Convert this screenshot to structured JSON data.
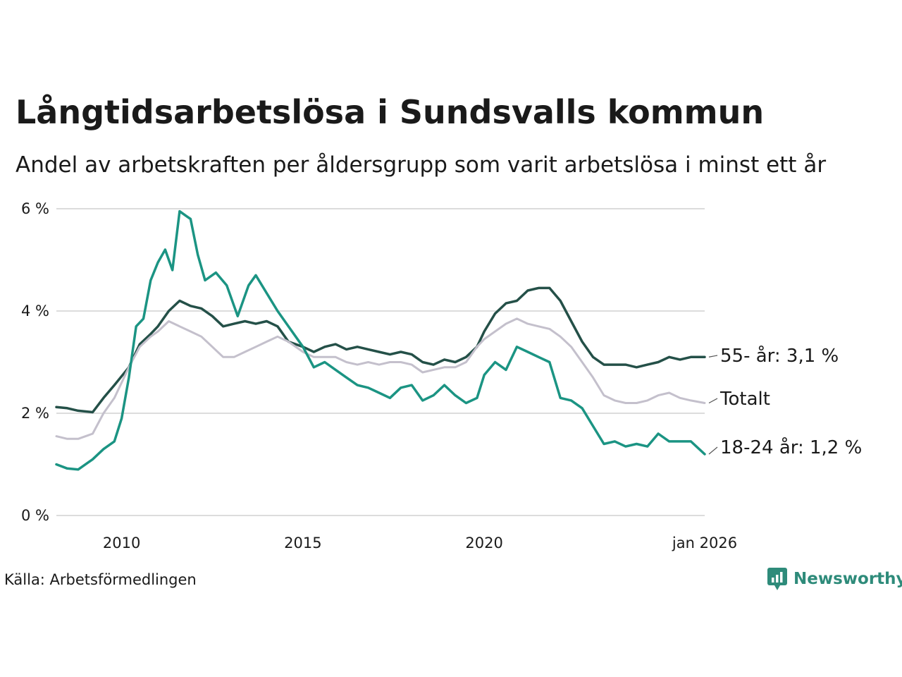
{
  "title": "Långtidsarbetslösa i Sundsvalls kommun",
  "subtitle": "Andel av arbetskraften per åldersgrupp som varit arbetslösa i minst ett år",
  "source": "Källa: Arbetsförmedlingen",
  "brand": "Newsworthy",
  "colors": {
    "age_55": "#245048",
    "total": "#c4c0cc",
    "age_18_24": "#1b9483",
    "grid": "#dcdcdc",
    "brand": "#2e8b7a"
  },
  "chart_data": {
    "type": "line",
    "title": "Långtidsarbetslösa i Sundsvalls kommun",
    "xlabel": "",
    "ylabel": "",
    "xlim": [
      2008.2,
      2026.08
    ],
    "ylim": [
      0,
      6
    ],
    "y_ticks": [
      {
        "value": 0,
        "label": "0 %"
      },
      {
        "value": 2,
        "label": "2 %"
      },
      {
        "value": 4,
        "label": "4 %"
      },
      {
        "value": 6,
        "label": "6 %"
      }
    ],
    "x_ticks": [
      {
        "value": 2010,
        "label": "2010"
      },
      {
        "value": 2015,
        "label": "2015"
      },
      {
        "value": 2020,
        "label": "2020"
      },
      {
        "value": 2026.08,
        "label": "jan 2026"
      }
    ],
    "grid": true,
    "legend": "direct labels at line ends",
    "series": [
      {
        "key": "age_55",
        "name": "55- år",
        "end_label": "55- år: 3,1 %",
        "x": [
          2008.2,
          2008.5,
          2008.8,
          2009.2,
          2009.5,
          2009.8,
          2010.2,
          2010.5,
          2010.8,
          2011.0,
          2011.3,
          2011.6,
          2011.9,
          2012.2,
          2012.5,
          2012.8,
          2013.1,
          2013.4,
          2013.7,
          2014.0,
          2014.3,
          2014.6,
          2015.0,
          2015.3,
          2015.6,
          2015.9,
          2016.2,
          2016.5,
          2016.8,
          2017.1,
          2017.4,
          2017.7,
          2018.0,
          2018.3,
          2018.6,
          2018.9,
          2019.2,
          2019.5,
          2019.8,
          2020.0,
          2020.3,
          2020.6,
          2020.9,
          2021.2,
          2021.5,
          2021.8,
          2022.1,
          2022.4,
          2022.7,
          2023.0,
          2023.3,
          2023.6,
          2023.9,
          2024.2,
          2024.5,
          2024.8,
          2025.1,
          2025.4,
          2025.7,
          2026.08
        ],
        "values": [
          2.12,
          2.1,
          2.05,
          2.02,
          2.3,
          2.55,
          2.9,
          3.35,
          3.55,
          3.7,
          4.0,
          4.2,
          4.1,
          4.05,
          3.9,
          3.7,
          3.75,
          3.8,
          3.75,
          3.8,
          3.7,
          3.4,
          3.3,
          3.2,
          3.3,
          3.35,
          3.25,
          3.3,
          3.25,
          3.2,
          3.15,
          3.2,
          3.15,
          3.0,
          2.95,
          3.05,
          3.0,
          3.1,
          3.3,
          3.6,
          3.95,
          4.15,
          4.2,
          4.4,
          4.45,
          4.45,
          4.2,
          3.8,
          3.4,
          3.1,
          2.95,
          2.95,
          2.95,
          2.9,
          2.95,
          3.0,
          3.1,
          3.05,
          3.1,
          3.1
        ]
      },
      {
        "key": "total",
        "name": "Totalt",
        "end_label": "Totalt",
        "x": [
          2008.2,
          2008.5,
          2008.8,
          2009.2,
          2009.5,
          2009.8,
          2010.2,
          2010.5,
          2010.8,
          2011.0,
          2011.3,
          2011.6,
          2011.9,
          2012.2,
          2012.5,
          2012.8,
          2013.1,
          2013.4,
          2013.7,
          2014.0,
          2014.3,
          2014.6,
          2015.0,
          2015.3,
          2015.6,
          2015.9,
          2016.2,
          2016.5,
          2016.8,
          2017.1,
          2017.4,
          2017.7,
          2018.0,
          2018.3,
          2018.6,
          2018.9,
          2019.2,
          2019.5,
          2019.8,
          2020.0,
          2020.3,
          2020.6,
          2020.9,
          2021.2,
          2021.5,
          2021.8,
          2022.1,
          2022.4,
          2022.7,
          2023.0,
          2023.3,
          2023.6,
          2023.9,
          2024.2,
          2024.5,
          2024.8,
          2025.1,
          2025.4,
          2025.7,
          2026.08
        ],
        "values": [
          1.55,
          1.5,
          1.5,
          1.6,
          2.0,
          2.3,
          2.9,
          3.3,
          3.5,
          3.6,
          3.8,
          3.7,
          3.6,
          3.5,
          3.3,
          3.1,
          3.1,
          3.2,
          3.3,
          3.4,
          3.5,
          3.4,
          3.2,
          3.1,
          3.1,
          3.1,
          3.0,
          2.95,
          3.0,
          2.95,
          3.0,
          3.0,
          2.95,
          2.8,
          2.85,
          2.9,
          2.9,
          3.0,
          3.3,
          3.45,
          3.6,
          3.75,
          3.85,
          3.75,
          3.7,
          3.65,
          3.5,
          3.3,
          3.0,
          2.7,
          2.35,
          2.25,
          2.2,
          2.2,
          2.25,
          2.35,
          2.4,
          2.3,
          2.25,
          2.2
        ]
      },
      {
        "key": "age_18_24",
        "name": "18-24 år",
        "end_label": "18-24 år: 1,2 %",
        "x": [
          2008.2,
          2008.5,
          2008.8,
          2009.2,
          2009.5,
          2009.8,
          2010.0,
          2010.2,
          2010.4,
          2010.6,
          2010.8,
          2011.0,
          2011.2,
          2011.4,
          2011.6,
          2011.8,
          2011.9,
          2012.1,
          2012.3,
          2012.6,
          2012.9,
          2013.2,
          2013.5,
          2013.7,
          2014.0,
          2014.3,
          2014.6,
          2015.0,
          2015.3,
          2015.6,
          2015.9,
          2016.2,
          2016.5,
          2016.8,
          2017.1,
          2017.4,
          2017.7,
          2018.0,
          2018.3,
          2018.6,
          2018.9,
          2019.2,
          2019.5,
          2019.8,
          2020.0,
          2020.3,
          2020.6,
          2020.9,
          2021.2,
          2021.5,
          2021.8,
          2022.1,
          2022.4,
          2022.7,
          2023.0,
          2023.3,
          2023.6,
          2023.9,
          2024.2,
          2024.5,
          2024.8,
          2025.1,
          2025.4,
          2025.7,
          2026.08
        ],
        "values": [
          1.0,
          0.92,
          0.9,
          1.1,
          1.3,
          1.45,
          1.9,
          2.7,
          3.7,
          3.85,
          4.6,
          4.95,
          5.2,
          4.8,
          5.95,
          5.85,
          5.8,
          5.1,
          4.6,
          4.75,
          4.5,
          3.9,
          4.5,
          4.7,
          4.35,
          4.0,
          3.7,
          3.3,
          2.9,
          3.0,
          2.85,
          2.7,
          2.55,
          2.5,
          2.4,
          2.3,
          2.5,
          2.55,
          2.25,
          2.35,
          2.55,
          2.35,
          2.2,
          2.3,
          2.75,
          3.0,
          2.85,
          3.3,
          3.2,
          3.1,
          3.0,
          2.3,
          2.25,
          2.1,
          1.75,
          1.4,
          1.45,
          1.35,
          1.4,
          1.35,
          1.6,
          1.45,
          1.45,
          1.45,
          1.2
        ]
      }
    ]
  }
}
